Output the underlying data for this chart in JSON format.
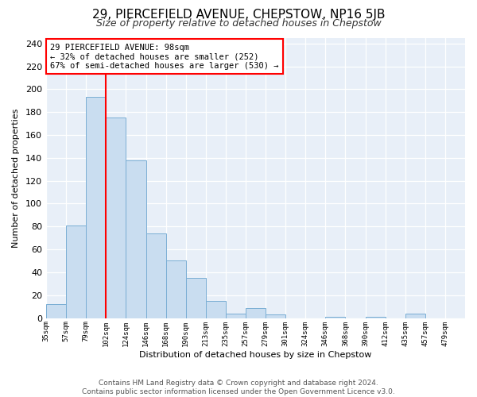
{
  "title": "29, PIERCEFIELD AVENUE, CHEPSTOW, NP16 5JB",
  "subtitle": "Size of property relative to detached houses in Chepstow",
  "xlabel": "Distribution of detached houses by size in Chepstow",
  "ylabel": "Number of detached properties",
  "bin_labels": [
    "35sqm",
    "57sqm",
    "79sqm",
    "102sqm",
    "124sqm",
    "146sqm",
    "168sqm",
    "190sqm",
    "213sqm",
    "235sqm",
    "257sqm",
    "279sqm",
    "301sqm",
    "324sqm",
    "346sqm",
    "368sqm",
    "390sqm",
    "412sqm",
    "435sqm",
    "457sqm",
    "479sqm"
  ],
  "bar_values": [
    12,
    81,
    193,
    175,
    138,
    74,
    50,
    35,
    15,
    4,
    9,
    3,
    0,
    0,
    1,
    0,
    1,
    0,
    4,
    0
  ],
  "bar_color": "#c9ddf0",
  "bar_edge_color": "#7aaed4",
  "vline_index": 3,
  "vline_color": "red",
  "ylim": [
    0,
    245
  ],
  "yticks": [
    0,
    20,
    40,
    60,
    80,
    100,
    120,
    140,
    160,
    180,
    200,
    220,
    240
  ],
  "annotation_title": "29 PIERCEFIELD AVENUE: 98sqm",
  "annotation_line1": "← 32% of detached houses are smaller (252)",
  "annotation_line2": "67% of semi-detached houses are larger (530) →",
  "footer_line1": "Contains HM Land Registry data © Crown copyright and database right 2024.",
  "footer_line2": "Contains public sector information licensed under the Open Government Licence v3.0.",
  "background_color": "#e8eff8",
  "title_fontsize": 11,
  "subtitle_fontsize": 9,
  "footer_fontsize": 6.5
}
